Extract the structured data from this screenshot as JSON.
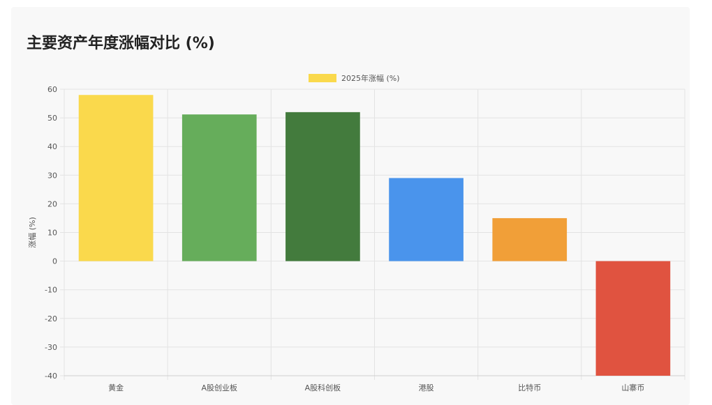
{
  "header": {
    "title": "主要资产年度涨幅对比 (%)"
  },
  "colors": {
    "grid": "#e3e3e3",
    "axis": "#cfcfcf"
  },
  "chart_data": {
    "type": "bar",
    "title": "主要资产年度涨幅对比 (%)",
    "xlabel": "",
    "ylabel": "涨幅 (%)",
    "categories": [
      "黄金",
      "A股创业板",
      "A股科创板",
      "港股",
      "比特币",
      "山寨币"
    ],
    "series": [
      {
        "name": "2025年涨幅 (%)",
        "values": [
          58,
          51.2,
          52,
          29,
          15,
          -40
        ],
        "colors": [
          "#fad94c",
          "#66ad5b",
          "#437b3d",
          "#4a94ec",
          "#f19f38",
          "#e05340"
        ]
      }
    ],
    "legend": {
      "position": "top-center",
      "swatch_color": "#fad94c"
    },
    "ylim": [
      -40,
      60
    ],
    "yticks": [
      60,
      50,
      40,
      30,
      20,
      10,
      0,
      -10,
      -20,
      -30,
      -40
    ],
    "grid": true
  }
}
